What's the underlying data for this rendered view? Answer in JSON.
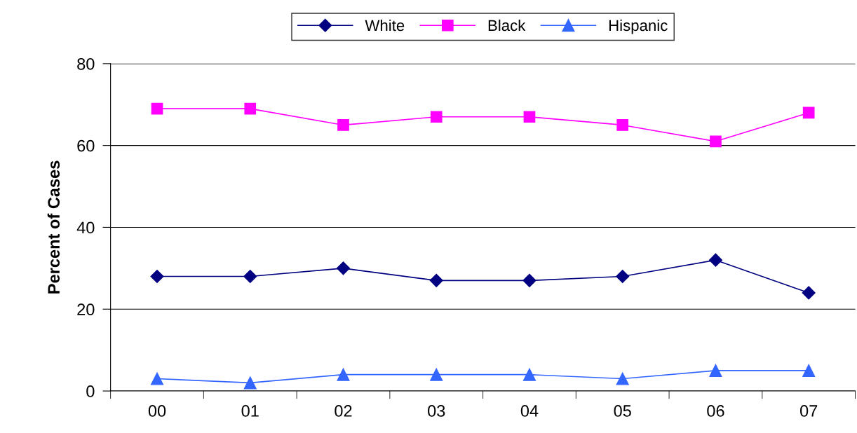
{
  "chart_data": {
    "type": "line",
    "ylabel": "Percent of Cases",
    "categories": [
      "00",
      "01",
      "02",
      "03",
      "04",
      "05",
      "06",
      "07"
    ],
    "series": [
      {
        "name": "White",
        "color": "#000080",
        "marker": "diamond",
        "values": [
          28,
          28,
          30,
          27,
          27,
          28,
          32,
          24
        ]
      },
      {
        "name": "Black",
        "color": "#ff00ff",
        "marker": "square",
        "values": [
          69,
          69,
          65,
          67,
          67,
          65,
          61,
          68
        ]
      },
      {
        "name": "Hispanic",
        "color": "#3366ff",
        "marker": "triangle",
        "values": [
          3,
          2,
          4,
          4,
          4,
          3,
          5,
          5
        ]
      }
    ],
    "ylim": [
      0,
      80
    ],
    "yticks": [
      0,
      20,
      40,
      60,
      80
    ],
    "grid": "y",
    "legend": "top",
    "line_style": "solid"
  }
}
